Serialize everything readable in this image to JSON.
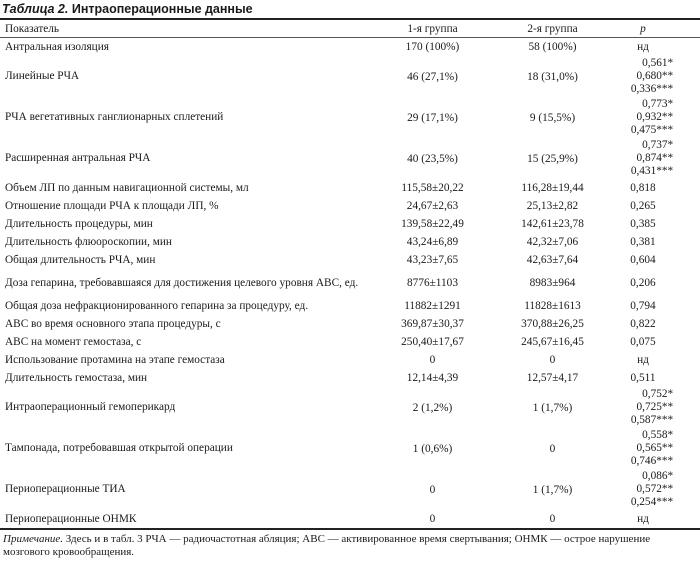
{
  "title": {
    "label": "Таблица 2.",
    "text": "Интраоперационные данные"
  },
  "table": {
    "headers": [
      "Показатель",
      "1-я группа",
      "2-я группа",
      "p"
    ],
    "rows": [
      {
        "label": "Антральная изоляция",
        "g1": "170 (100%)",
        "g2": "58 (100%)",
        "p": [
          "нд"
        ]
      },
      {
        "label": "Линейные РЧА",
        "g1": "46 (27,1%)",
        "g2": "18 (31,0%)",
        "p": [
          "0,561*",
          "0,680**",
          "0,336***"
        ]
      },
      {
        "label": "РЧА вегетативных ганглионарных сплетений",
        "g1": "29 (17,1%)",
        "g2": "9 (15,5%)",
        "p": [
          "0,773*",
          "0,932**",
          "0,475***"
        ]
      },
      {
        "label": "Расширенная антральная РЧА",
        "g1": "40 (23,5%)",
        "g2": "15 (25,9%)",
        "p": [
          "0,737*",
          "0,874**",
          "0,431***"
        ]
      },
      {
        "label": "Объем ЛП по данным навигационной системы, мл",
        "g1": "115,58±20,22",
        "g2": "116,28±19,44",
        "p": [
          "0,818"
        ]
      },
      {
        "label": "Отношение площади РЧА к площади ЛП, %",
        "g1": "24,67±2,63",
        "g2": "25,13±2,82",
        "p": [
          "0,265"
        ]
      },
      {
        "label": "Длительность процедуры, мин",
        "g1": "139,58±22,49",
        "g2": "142,61±23,78",
        "p": [
          "0,385"
        ]
      },
      {
        "label": "Длительность флюороскопии, мин",
        "g1": "43,24±6,89",
        "g2": "42,32±7,06",
        "p": [
          "0,381"
        ]
      },
      {
        "label": "Общая длительность РЧА, мин",
        "g1": "43,23±7,65",
        "g2": "42,63±7,64",
        "p": [
          "0,604"
        ]
      },
      {
        "label": "Доза гепарина, требовавшаяся для достижения целевого уровня АВС, ед.",
        "g1": "8776±1103",
        "g2": "8983±964",
        "p": [
          "0,206"
        ]
      },
      {
        "label": "Общая доза нефракционированного гепарина за процедуру, ед.",
        "g1": "11882±1291",
        "g2": "11828±1613",
        "p": [
          "0,794"
        ]
      },
      {
        "label": "АВС во время основного этапа процедуры, с",
        "g1": "369,87±30,37",
        "g2": "370,88±26,25",
        "p": [
          "0,822"
        ]
      },
      {
        "label": "АВС на момент гемостаза, с",
        "g1": "250,40±17,67",
        "g2": "245,67±16,45",
        "p": [
          "0,075"
        ]
      },
      {
        "label": "Использование протамина на этапе гемостаза",
        "g1": "0",
        "g2": "0",
        "p": [
          "нд"
        ]
      },
      {
        "label": "Длительность гемостаза, мин",
        "g1": "12,14±4,39",
        "g2": "12,57±4,17",
        "p": [
          "0,511"
        ]
      },
      {
        "label": "Интраоперационный гемоперикард",
        "g1": "2 (1,2%)",
        "g2": "1 (1,7%)",
        "p": [
          "0,752*",
          "0,725**",
          "0,587***"
        ]
      },
      {
        "label": "Тампонада, потребовавшая открытой операции",
        "g1": "1 (0,6%)",
        "g2": "0",
        "p": [
          "0,558*",
          "0,565**",
          "0,746***"
        ]
      },
      {
        "label": "Периоперационные ТИА",
        "g1": "0",
        "g2": "1 (1,7%)",
        "p": [
          "0,086*",
          "0,572**",
          "0,254***"
        ]
      },
      {
        "label": "Периоперационные ОНМК",
        "g1": "0",
        "g2": "0",
        "p": [
          "нд"
        ]
      }
    ]
  },
  "note": {
    "label": "Примечание.",
    "text": " Здесь и в табл. 3 РЧА — радиочастотная абляция; АВС — активированное время свертывания; ОНМК — острое нарушение мозгового кровообращения."
  }
}
